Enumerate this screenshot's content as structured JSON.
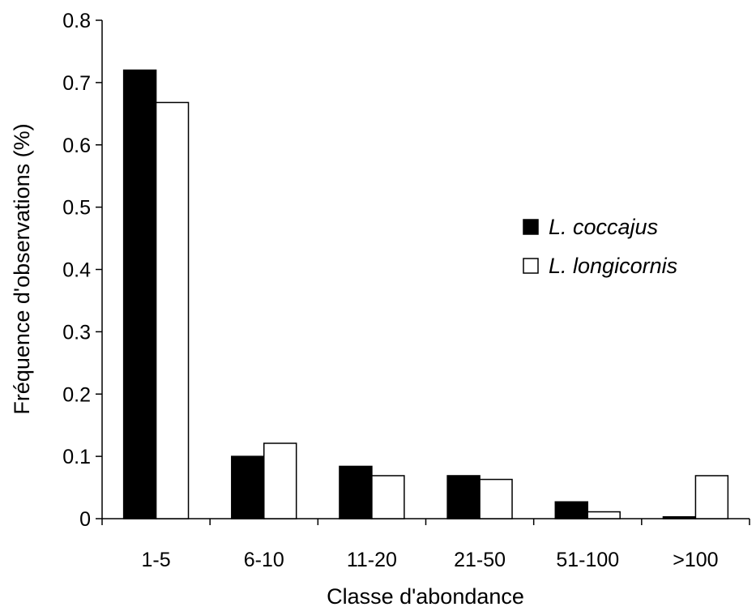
{
  "chart_data": {
    "type": "bar",
    "title": "",
    "xlabel": "Classe d'abondance",
    "ylabel": "Fréquence d'observations (%)",
    "categories": [
      "1-5",
      "6-10",
      "11-20",
      "21-50",
      "51-100",
      ">100"
    ],
    "series": [
      {
        "name": "L. coccajus",
        "color": "#000000",
        "values": [
          0.72,
          0.1,
          0.084,
          0.069,
          0.027,
          0.003
        ]
      },
      {
        "name": "L. longicornis",
        "color": "#ffffff",
        "values": [
          0.668,
          0.121,
          0.069,
          0.063,
          0.011,
          0.069
        ]
      }
    ],
    "ylim": [
      0,
      0.8
    ],
    "yticks": [
      "0",
      "0.1",
      "0.2",
      "0.3",
      "0.4",
      "0.5",
      "0.6",
      "0.7",
      "0.8"
    ],
    "grid": false,
    "legend": "right"
  }
}
